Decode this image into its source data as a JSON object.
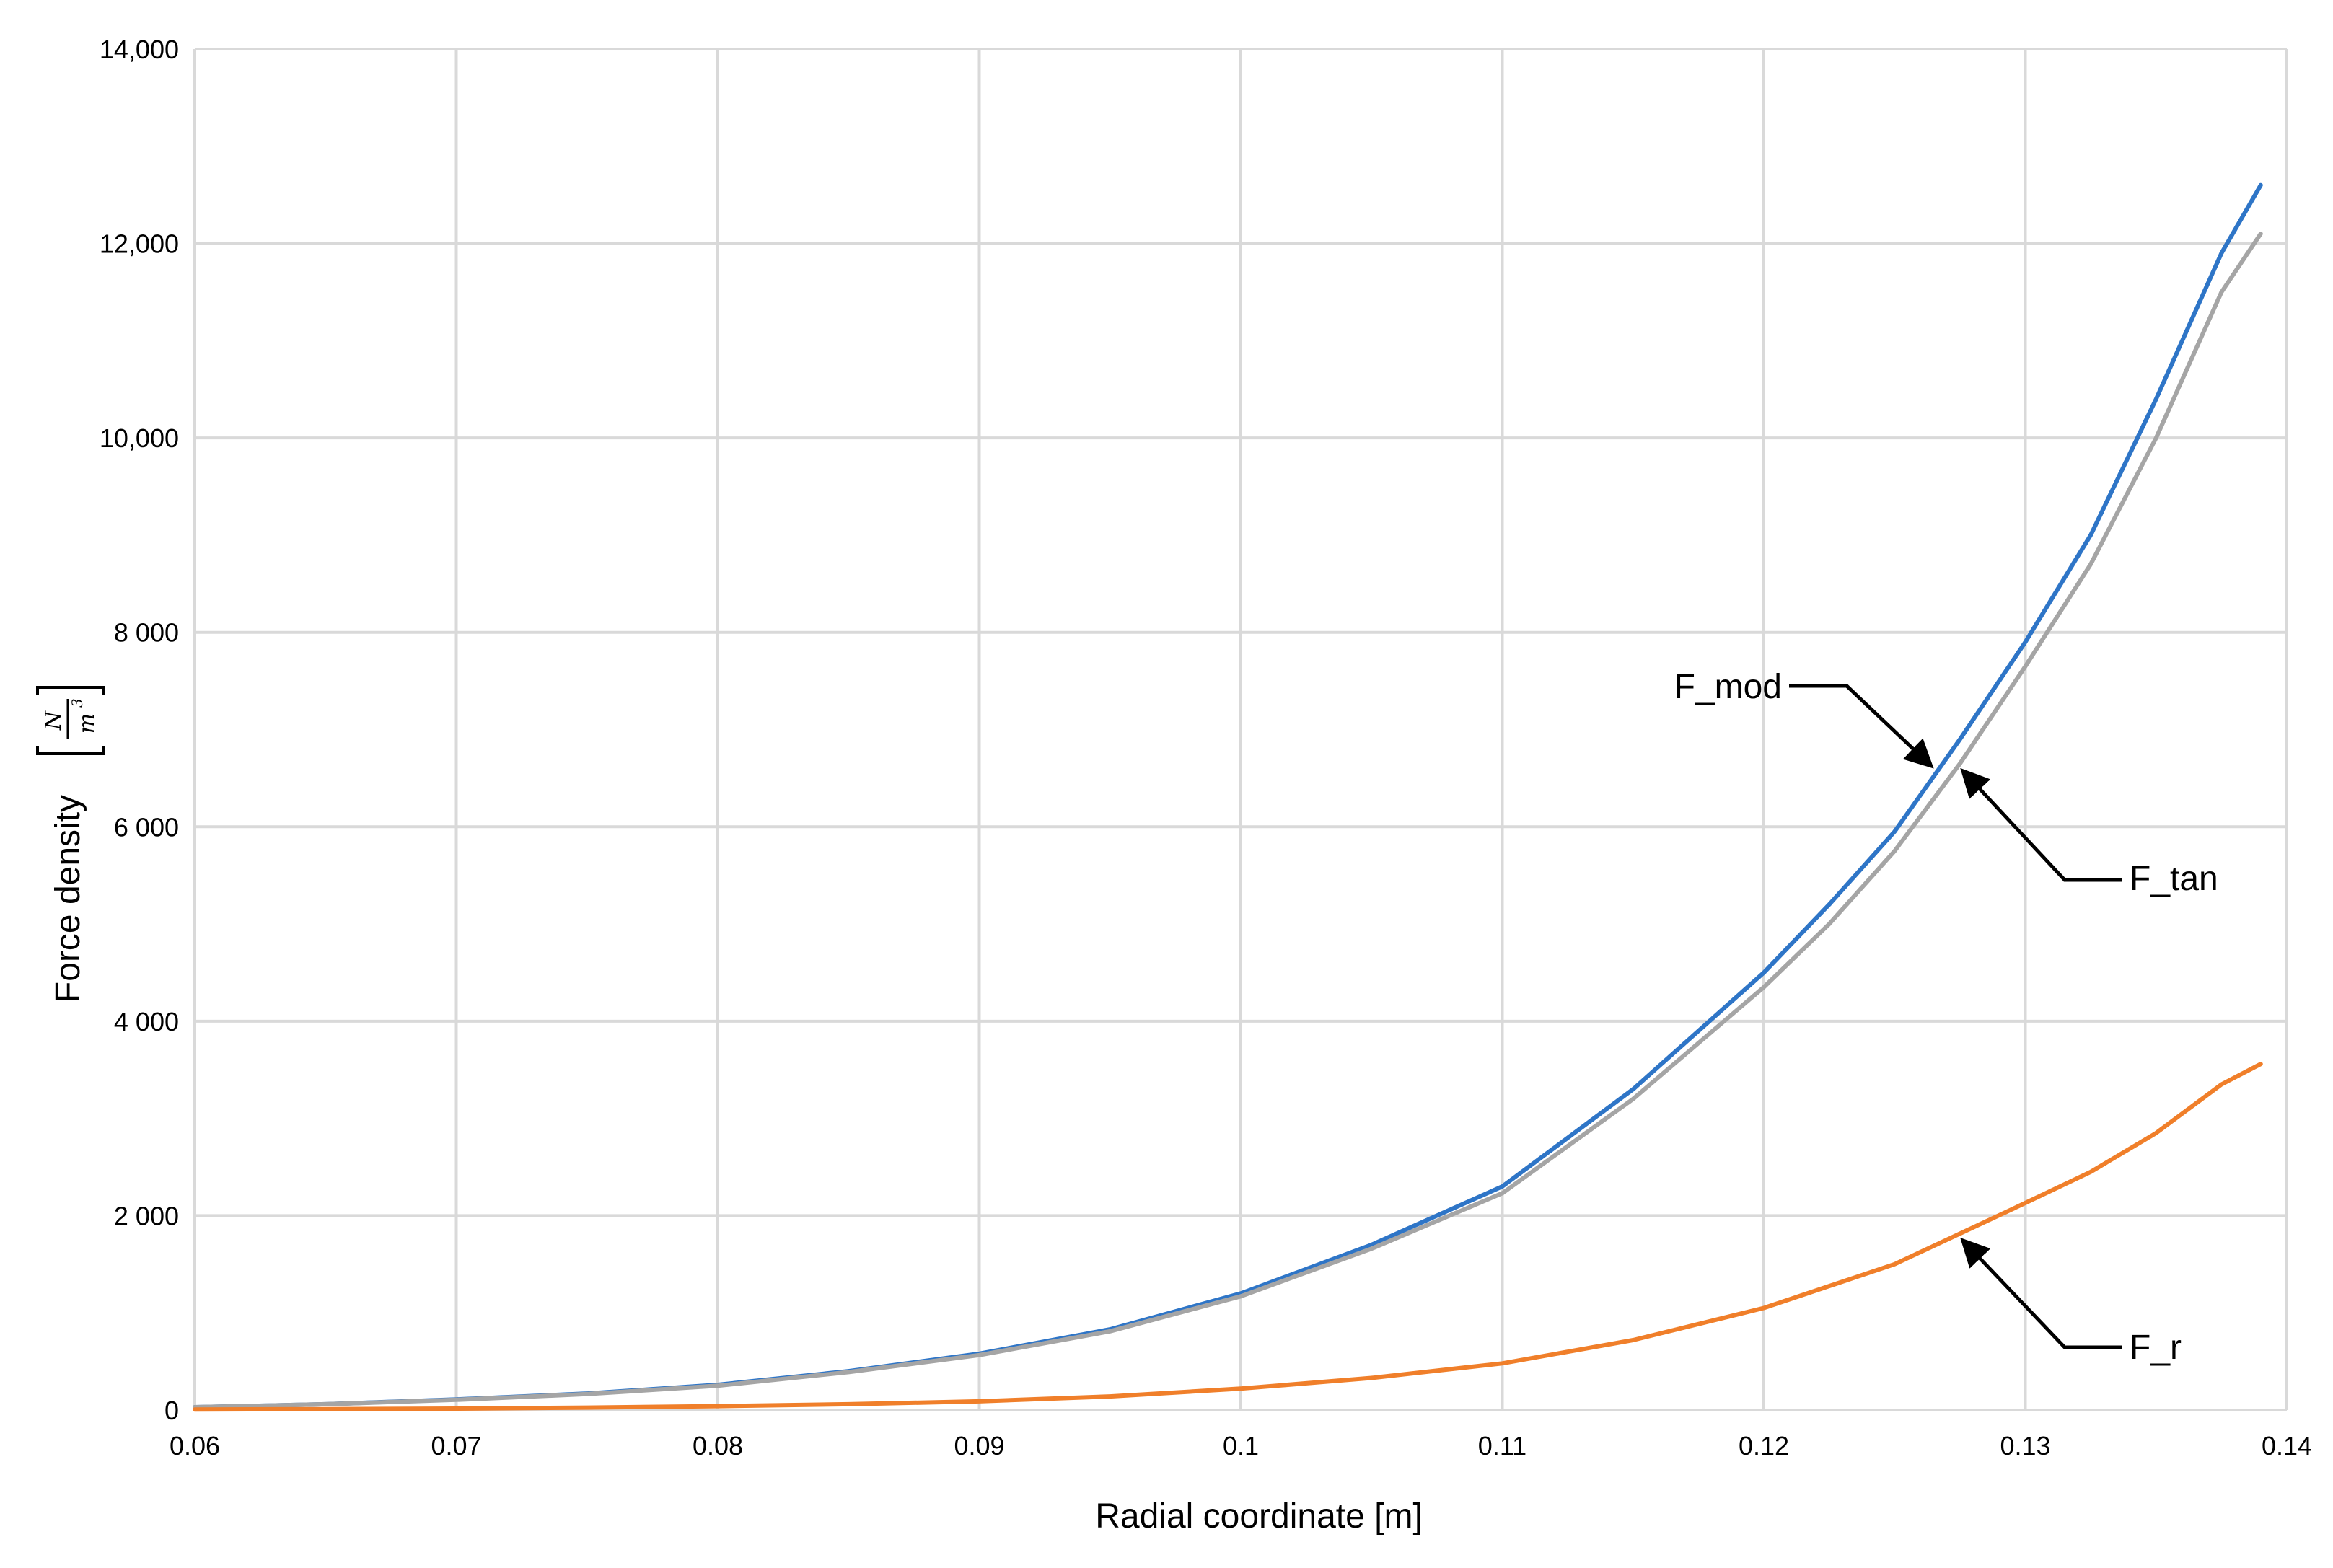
{
  "chart_data": {
    "type": "line",
    "xlabel": "Radial coordinate [m]",
    "ylabel": "Force density",
    "ylabel_unit": {
      "numerator": "N",
      "denominator": "m",
      "exponent": "3"
    },
    "xlim": [
      0.06,
      0.14
    ],
    "ylim": [
      0,
      14000
    ],
    "grid": true,
    "x_ticks": [
      {
        "value": 0.06,
        "label": "0.06"
      },
      {
        "value": 0.07,
        "label": "0.07"
      },
      {
        "value": 0.08,
        "label": "0.08"
      },
      {
        "value": 0.09,
        "label": "0.09"
      },
      {
        "value": 0.1,
        "label": "0.1"
      },
      {
        "value": 0.11,
        "label": "0.11"
      },
      {
        "value": 0.12,
        "label": "0.12"
      },
      {
        "value": 0.13,
        "label": "0.13"
      },
      {
        "value": 0.14,
        "label": "0.14"
      }
    ],
    "y_ticks": [
      {
        "value": 0,
        "label": "0"
      },
      {
        "value": 2000,
        "label": "2 000"
      },
      {
        "value": 4000,
        "label": "4 000"
      },
      {
        "value": 6000,
        "label": "6 000"
      },
      {
        "value": 8000,
        "label": "8 000"
      },
      {
        "value": 10000,
        "label": "10,000"
      },
      {
        "value": 12000,
        "label": "12,000"
      },
      {
        "value": 14000,
        "label": "14,000"
      }
    ],
    "series": [
      {
        "name": "F_mod",
        "color": "#2e75c7",
        "x": [
          0.06,
          0.065,
          0.07,
          0.075,
          0.08,
          0.085,
          0.09,
          0.095,
          0.1,
          0.105,
          0.11,
          0.115,
          0.12,
          0.1225,
          0.125,
          0.1275,
          0.13,
          0.1325,
          0.135,
          0.1375,
          0.139
        ],
        "y": [
          30,
          60,
          110,
          170,
          260,
          400,
          580,
          830,
          1200,
          1700,
          2300,
          3300,
          4500,
          5200,
          5950,
          6900,
          7900,
          9000,
          10400,
          11900,
          12600
        ]
      },
      {
        "name": "F_tan",
        "color": "#a5a5a5",
        "x": [
          0.06,
          0.065,
          0.07,
          0.075,
          0.08,
          0.085,
          0.09,
          0.095,
          0.1,
          0.105,
          0.11,
          0.115,
          0.12,
          0.1225,
          0.125,
          0.1275,
          0.13,
          0.1325,
          0.135,
          0.1375,
          0.139
        ],
        "y": [
          30,
          60,
          105,
          165,
          250,
          390,
          565,
          810,
          1170,
          1660,
          2230,
          3200,
          4350,
          5000,
          5750,
          6650,
          7650,
          8700,
          10000,
          11500,
          12100
        ]
      },
      {
        "name": "F_r",
        "color": "#f07f2a",
        "x": [
          0.06,
          0.065,
          0.07,
          0.075,
          0.08,
          0.085,
          0.09,
          0.095,
          0.1,
          0.105,
          0.11,
          0.115,
          0.12,
          0.125,
          0.13,
          0.1325,
          0.135,
          0.1375,
          0.139
        ],
        "y": [
          5,
          10,
          15,
          25,
          40,
          60,
          90,
          140,
          220,
          330,
          480,
          720,
          1050,
          1500,
          2130,
          2450,
          2850,
          3350,
          3560
        ]
      }
    ],
    "annotations": [
      {
        "label": "F_mod",
        "target": [
          0.1263,
          6650
        ]
      },
      {
        "label": "F_tan",
        "target": [
          0.1277,
          6550
        ]
      },
      {
        "label": "F_r",
        "target": [
          0.1277,
          1720
        ]
      }
    ]
  }
}
